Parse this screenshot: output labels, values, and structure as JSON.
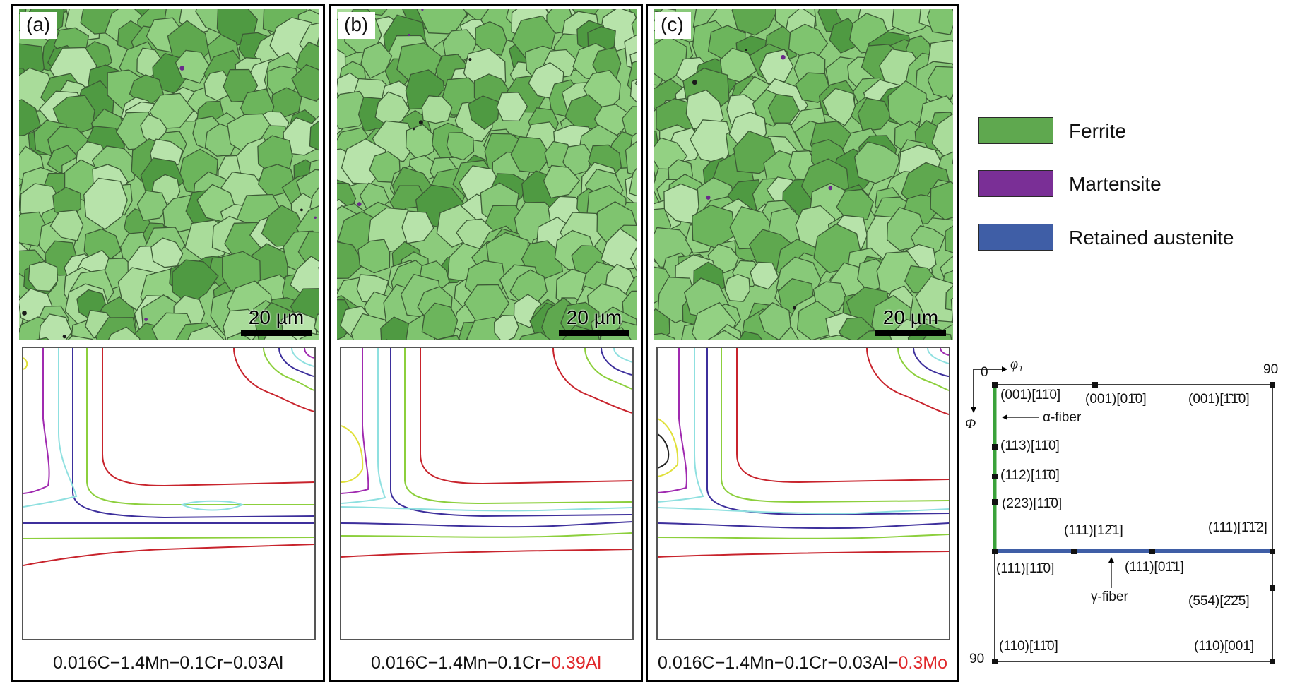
{
  "panels": [
    {
      "tag": "(a)",
      "scale": "20 µm",
      "caption_main": "0.016C−1.4Mn−0.1Cr−0.03Al",
      "caption_highlight": ""
    },
    {
      "tag": "(b)",
      "scale": "20 µm",
      "caption_main": "0.016C−1.4Mn−0.1Cr−",
      "caption_highlight": "0.39Al"
    },
    {
      "tag": "(c)",
      "scale": "20 µm",
      "caption_main": "0.016C−1.4Mn−0.1Cr−0.03Al−",
      "caption_highlight": "0.3Mo"
    }
  ],
  "legend": [
    {
      "label": "Ferrite",
      "color": "#5fa84f"
    },
    {
      "label": "Martensite",
      "color": "#7a2f96"
    },
    {
      "label": "Retained austenite",
      "color": "#3f5ea6"
    }
  ],
  "odf_key": {
    "phi1_label": "φ₁",
    "Phi_label": "Φ",
    "corner_0": "0",
    "corner_90_top": "90",
    "corner_90_left": "90",
    "alpha_fiber": "α-fiber",
    "gamma_fiber": "γ-fiber",
    "orientations": {
      "o001_110": "(001)[11̄0]",
      "o001_010": "(001)[01̄0]",
      "o001_m1m10": "(001)[1̄1̄0]",
      "o113_110": "(113)[11̄0]",
      "o112_110": "(112)[11̄0]",
      "o223_110": "(223)[11̄0]",
      "o111_121": "(111)[12̄1]",
      "o111_m1m12": "(111)[1̄1̄2]",
      "o111_110": "(111)[11̄0]",
      "o111_011": "(111)[01̄1]",
      "o554_225": "(554)[2̄2̄5]",
      "o110_110": "(110)[11̄0]",
      "o110_001": "(110)[001]"
    },
    "alpha_color": "#3aa23a",
    "gamma_color": "#3f5ea6"
  },
  "contour_colors": [
    "#c8232c",
    "#8ccf3c",
    "#3d2f9c",
    "#8fe0e0",
    "#a02ab0",
    "#e0e03a"
  ]
}
